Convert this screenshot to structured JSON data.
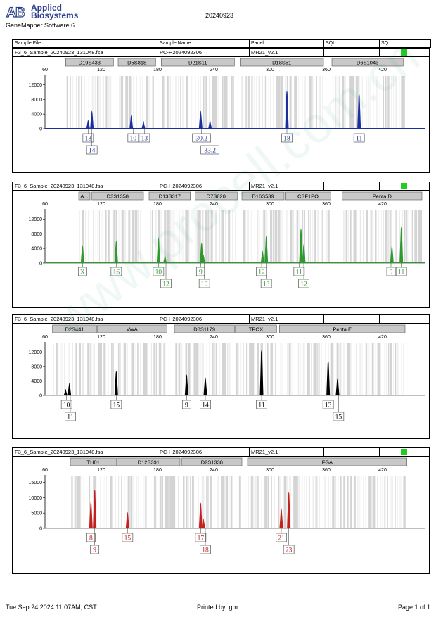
{
  "header": {
    "brand_line1": "Applied",
    "brand_line2": "Biosystems",
    "software": "GeneMapper Software 6",
    "run_date": "20240923"
  },
  "columns": {
    "sample_file": "Sample File",
    "sample_name": "Sample Name",
    "panel": "Panel",
    "sqi": "SQI",
    "sq": "SQ"
  },
  "colors": {
    "dye_blue": "#1a2ea0",
    "dye_green": "#2e9a2e",
    "dye_black": "#000000",
    "dye_red": "#c42020",
    "quality_ok": "#22cc22",
    "bin_fill": "#d4d4d4"
  },
  "chart_data": [
    {
      "type": "line",
      "dye": "blue",
      "sample_file": "F3_6_Sample_20240923_131048.fsa",
      "sample_name": "PC-H2024092306",
      "panel": "MR21_v2.1",
      "x_ticks": [
        60,
        120,
        180,
        240,
        300,
        360,
        420
      ],
      "xlim": [
        60,
        465
      ],
      "y_ticks": [
        0,
        4000,
        8000,
        12000
      ],
      "ylim": [
        0,
        14000
      ],
      "markers": [
        {
          "name": "D19S433",
          "start": 82,
          "end": 133
        },
        {
          "name": "D5S818",
          "start": 138,
          "end": 178
        },
        {
          "name": "D21S11",
          "start": 184,
          "end": 262
        },
        {
          "name": "D18S51",
          "start": 268,
          "end": 357
        },
        {
          "name": "D6S1043",
          "start": 366,
          "end": 442
        }
      ],
      "peaks": [
        {
          "x": 106,
          "y": 2400
        },
        {
          "x": 110,
          "y": 4800
        },
        {
          "x": 152,
          "y": 3600
        },
        {
          "x": 165,
          "y": 2100
        },
        {
          "x": 226,
          "y": 4800
        },
        {
          "x": 236,
          "y": 2300
        },
        {
          "x": 318,
          "y": 10300
        },
        {
          "x": 395,
          "y": 9500
        }
      ],
      "alleles": [
        {
          "x": 106,
          "label": "13",
          "row": 1
        },
        {
          "x": 110,
          "label": "14",
          "row": 2
        },
        {
          "x": 154,
          "label": "10",
          "row": 1
        },
        {
          "x": 166,
          "label": "13",
          "row": 1
        },
        {
          "x": 227,
          "label": "30.2",
          "row": 1
        },
        {
          "x": 236,
          "label": "33.2",
          "row": 2
        },
        {
          "x": 318,
          "label": "18",
          "row": 1
        },
        {
          "x": 395,
          "label": "11",
          "row": 1
        }
      ]
    },
    {
      "type": "line",
      "dye": "green",
      "sample_file": "F3_6_Sample_20240923_131048.fsa",
      "sample_name": "PC-H2024092306",
      "panel": "MR21_v2.1",
      "x_ticks": [
        60,
        120,
        180,
        240,
        300,
        360,
        420
      ],
      "xlim": [
        60,
        465
      ],
      "y_ticks": [
        0,
        4000,
        8000,
        12000
      ],
      "ylim": [
        0,
        14000
      ],
      "markers": [
        {
          "name": "A...",
          "start": 96,
          "end": 108
        },
        {
          "name": "D3S1358",
          "start": 110,
          "end": 165
        },
        {
          "name": "D13S317",
          "start": 171,
          "end": 215
        },
        {
          "name": "D7S820",
          "start": 220,
          "end": 265
        },
        {
          "name": "D16S539",
          "start": 270,
          "end": 315
        },
        {
          "name": "CSF1PO",
          "start": 316,
          "end": 365
        },
        {
          "name": "Penta D",
          "start": 377,
          "end": 462
        }
      ],
      "peaks": [
        {
          "x": 100,
          "y": 4800
        },
        {
          "x": 136,
          "y": 6000
        },
        {
          "x": 181,
          "y": 6800
        },
        {
          "x": 188,
          "y": 2100
        },
        {
          "x": 227,
          "y": 5500
        },
        {
          "x": 229,
          "y": 2300
        },
        {
          "x": 292,
          "y": 3300
        },
        {
          "x": 296,
          "y": 7300
        },
        {
          "x": 333,
          "y": 9400
        },
        {
          "x": 336,
          "y": 5100
        },
        {
          "x": 430,
          "y": 4700
        },
        {
          "x": 440,
          "y": 9800
        }
      ],
      "alleles": [
        {
          "x": 100,
          "label": "X",
          "row": 1
        },
        {
          "x": 136,
          "label": "16",
          "row": 1
        },
        {
          "x": 181,
          "label": "10",
          "row": 1
        },
        {
          "x": 189,
          "label": "12",
          "row": 2
        },
        {
          "x": 226,
          "label": "9",
          "row": 1
        },
        {
          "x": 230,
          "label": "10",
          "row": 2
        },
        {
          "x": 291,
          "label": "12",
          "row": 1
        },
        {
          "x": 296,
          "label": "13",
          "row": 2
        },
        {
          "x": 331,
          "label": "11",
          "row": 1
        },
        {
          "x": 336,
          "label": "12",
          "row": 2
        },
        {
          "x": 429,
          "label": "9",
          "row": 1
        },
        {
          "x": 440,
          "label": "11",
          "row": 1
        }
      ]
    },
    {
      "type": "line",
      "dye": "black",
      "sample_file": "F3_6_Sample_20240923_131048.fsa",
      "sample_name": "PC-H2024092306",
      "panel": "MR21_v2.1",
      "x_ticks": [
        60,
        120,
        180,
        240,
        300,
        360,
        420
      ],
      "xlim": [
        60,
        465
      ],
      "y_ticks": [
        0,
        4000,
        8000,
        12000
      ],
      "ylim": [
        0,
        14000
      ],
      "markers": [
        {
          "name": "D2S441",
          "start": 68,
          "end": 115
        },
        {
          "name": "vWA",
          "start": 116,
          "end": 190
        },
        {
          "name": "D8S1179",
          "start": 198,
          "end": 262
        },
        {
          "name": "TPOX",
          "start": 263,
          "end": 307
        },
        {
          "name": "Penta E",
          "start": 310,
          "end": 444
        }
      ],
      "peaks": [
        {
          "x": 82,
          "y": 1700
        },
        {
          "x": 86,
          "y": 3300
        },
        {
          "x": 136,
          "y": 6700
        },
        {
          "x": 211,
          "y": 5700
        },
        {
          "x": 231,
          "y": 4900
        },
        {
          "x": 291,
          "y": 12400
        },
        {
          "x": 362,
          "y": 9500
        },
        {
          "x": 372,
          "y": 4700
        }
      ],
      "alleles": [
        {
          "x": 83,
          "label": "10",
          "row": 1
        },
        {
          "x": 87,
          "label": "11",
          "row": 2
        },
        {
          "x": 136,
          "label": "15",
          "row": 1
        },
        {
          "x": 211,
          "label": "9",
          "row": 1
        },
        {
          "x": 231,
          "label": "14",
          "row": 1
        },
        {
          "x": 291,
          "label": "11",
          "row": 1
        },
        {
          "x": 362,
          "label": "13",
          "row": 1
        },
        {
          "x": 373,
          "label": "15",
          "row": 2
        }
      ]
    },
    {
      "type": "line",
      "dye": "red",
      "sample_file": "F3_6_Sample_20240923_131048.fsa",
      "sample_name": "PC-H2024092306",
      "panel": "MR21_v2.1",
      "x_ticks": [
        60,
        120,
        180,
        240,
        300,
        360,
        420
      ],
      "xlim": [
        60,
        465
      ],
      "y_ticks": [
        0,
        5000,
        10000,
        15000
      ],
      "ylim": [
        0,
        16500
      ],
      "markers": [
        {
          "name": "TH01",
          "start": 87,
          "end": 136
        },
        {
          "name": "D12S391",
          "start": 137,
          "end": 204
        },
        {
          "name": "D2S1338",
          "start": 206,
          "end": 270
        },
        {
          "name": "FGA",
          "start": 276,
          "end": 446
        }
      ],
      "peaks": [
        {
          "x": 109,
          "y": 8600
        },
        {
          "x": 113,
          "y": 12600
        },
        {
          "x": 148,
          "y": 5200
        },
        {
          "x": 226,
          "y": 8300
        },
        {
          "x": 229,
          "y": 3000
        },
        {
          "x": 312,
          "y": 6500
        },
        {
          "x": 320,
          "y": 11700
        }
      ],
      "alleles": [
        {
          "x": 109,
          "label": "8",
          "row": 1
        },
        {
          "x": 113,
          "label": "9",
          "row": 2
        },
        {
          "x": 148,
          "label": "15",
          "row": 1
        },
        {
          "x": 226,
          "label": "17",
          "row": 1
        },
        {
          "x": 231,
          "label": "18",
          "row": 2
        },
        {
          "x": 312,
          "label": "21",
          "row": 1
        },
        {
          "x": 320,
          "label": "23",
          "row": 2
        }
      ]
    }
  ],
  "footer": {
    "datetime": "Tue Sep 24,2024 11:07AM, CST",
    "printed_by": "Printed by: gm",
    "page": "Page 1 of 1"
  }
}
